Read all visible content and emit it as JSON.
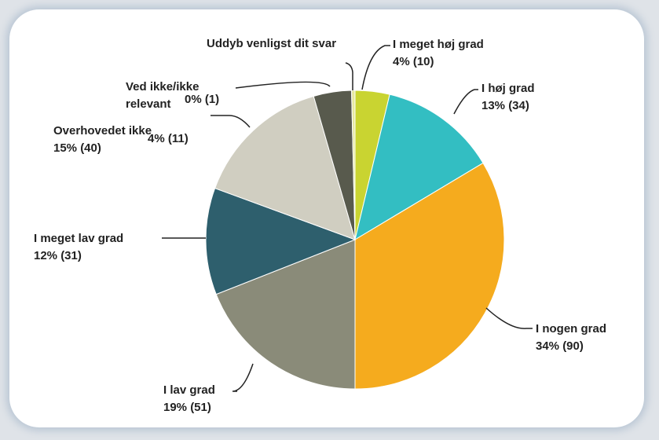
{
  "chart_data": {
    "type": "pie",
    "categories": [
      "I meget høj grad",
      "I høj grad",
      "I nogen grad",
      "I lav grad",
      "I meget lav grad",
      "Overhovedet ikke",
      "Ved ikke/ikke relevant",
      "Uddyb venligst dit svar"
    ],
    "values": [
      10,
      34,
      90,
      51,
      31,
      40,
      11,
      1
    ],
    "value_labels": [
      "4% (10)",
      "13% (34)",
      "34% (90)",
      "19% (51)",
      "12% (31)",
      "15% (40)",
      "4% (11)",
      "0% (1)"
    ],
    "colors": [
      "#c9d431",
      "#33bec2",
      "#f5ab1e",
      "#8a8b79",
      "#2e5f6d",
      "#d0cec1",
      "#585a4d",
      "#e6e8a0"
    ]
  }
}
